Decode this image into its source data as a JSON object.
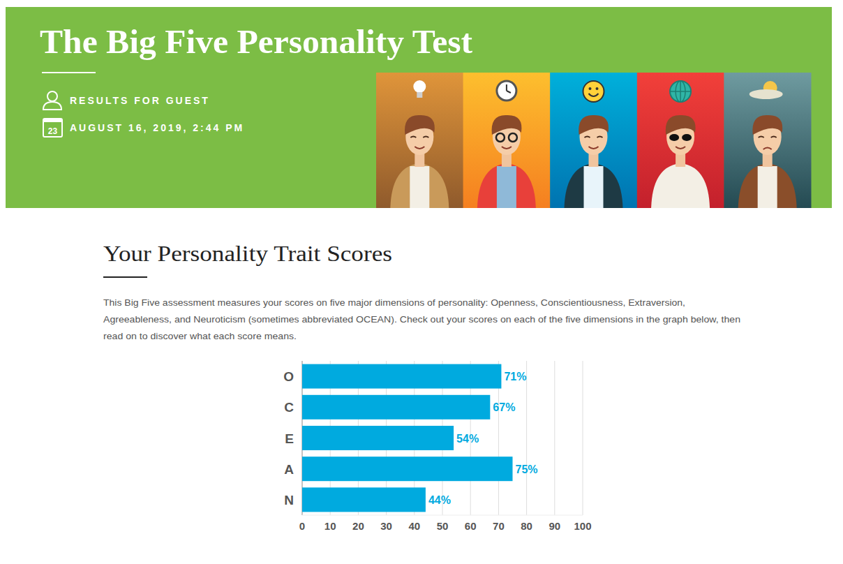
{
  "header": {
    "title": "The Big Five Personality Test",
    "user": "RESULTS FOR GUEST",
    "date_icon": "23",
    "date": "AUGUST 16, 2019, 2:44 PM"
  },
  "section": {
    "heading": "Your Personality Trait Scores",
    "paragraph": [
      "This Big Five assessment measures your scores on five major dimensions of personality: Openness, Conscientiousness, Extraversion,",
      "Agreeableness, and Neuroticism (sometimes abbreviated OCEAN). Check out your scores on each of the five dimensions in the graph below, then",
      "read on to discover what each score means."
    ]
  },
  "chart_data": {
    "type": "bar",
    "orientation": "horizontal",
    "categories": [
      "O",
      "C",
      "E",
      "A",
      "N"
    ],
    "values": [
      71,
      67,
      54,
      75,
      44
    ],
    "value_labels": [
      "71%",
      "67%",
      "54%",
      "75%",
      "44%"
    ],
    "data_labels": true,
    "color": "#00aadf",
    "xlim": [
      0,
      100
    ],
    "xticks": [
      0,
      10,
      20,
      30,
      40,
      50,
      60,
      70,
      80,
      90,
      100
    ],
    "grid": true
  }
}
